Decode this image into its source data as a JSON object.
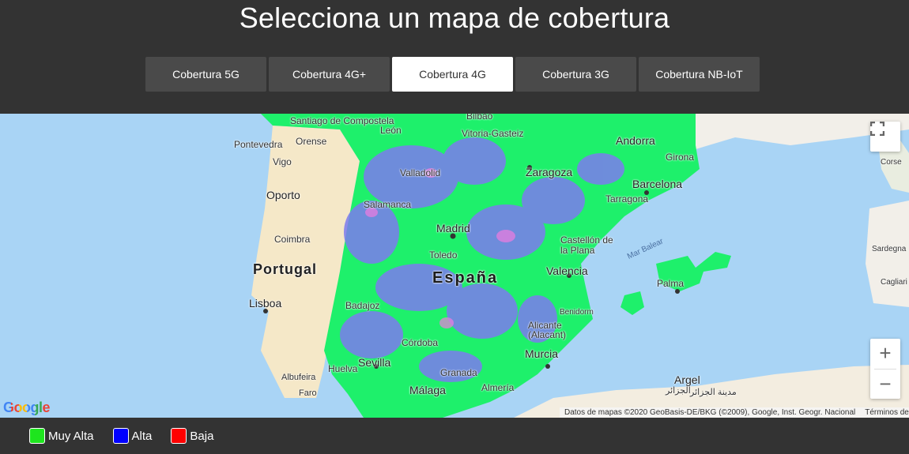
{
  "header": {
    "title": "Selecciona un mapa de cobertura",
    "tabs": [
      {
        "label": "Cobertura 5G",
        "active": false
      },
      {
        "label": "Cobertura 4G+",
        "active": false
      },
      {
        "label": "Cobertura 4G",
        "active": true
      },
      {
        "label": "Cobertura 3G",
        "active": false
      },
      {
        "label": "Cobertura NB-IoT",
        "active": false
      }
    ]
  },
  "map": {
    "labels": {
      "santiago": "Santiago de Compostela",
      "pontevedra": "Pontevedra",
      "orense": "Orense",
      "vigo": "Vigo",
      "leon": "León",
      "bilbao": "Bilbao",
      "vitoria": "Vitoria-Gasteiz",
      "andorra": "Andorra",
      "girona": "Girona",
      "corse": "Corse",
      "valladolid": "Valladolid",
      "zaragoza": "Zaragoza",
      "barcelona": "Barcelona",
      "tarragona": "Tarragona",
      "oporto": "Oporto",
      "salamanca": "Salamanca",
      "madrid": "Madrid",
      "coimbra": "Coimbra",
      "toledo": "Toledo",
      "castellon": "Castellón de la Plana",
      "mar_balear": "Mar Balear",
      "sardegna": "Sardegna",
      "portugal": "Portugal",
      "espana": "España",
      "valencia": "Valencia",
      "palma": "Palma",
      "cagliari": "Cagliari",
      "lisboa": "Lisboa",
      "badajoz": "Badajoz",
      "benidorm": "Benidorm",
      "alicante": "Alicante\n(Alacant)",
      "cordoba": "Córdoba",
      "murcia": "Murcia",
      "huelva": "Huelva",
      "sevilla": "Sevilla",
      "granada": "Granada",
      "albufeira": "Albufeira",
      "faro": "Faro",
      "almeria": "Almería",
      "malaga": "Málaga",
      "argel": "Argel",
      "argel_ar": "الجزائر",
      "medina": "مدينة الجزائر"
    },
    "google_logo": "Google",
    "attribution": "Datos de mapas ©2020 GeoBasis-DE/BKG (©2009), Google, Inst. Geogr. Nacional",
    "terms": "Términos de uso",
    "zoom_in": "+",
    "zoom_out": "−",
    "colors": {
      "sea": "#a9d4f5",
      "land": "#f2efe9",
      "coverage": "#1ef06b",
      "alta": "#7d7bef"
    }
  },
  "legend": {
    "items": [
      {
        "label": "Muy Alta",
        "color": "#1ee51e"
      },
      {
        "label": "Alta",
        "color": "#0000ff"
      },
      {
        "label": "Baja",
        "color": "#ff0000"
      }
    ]
  }
}
